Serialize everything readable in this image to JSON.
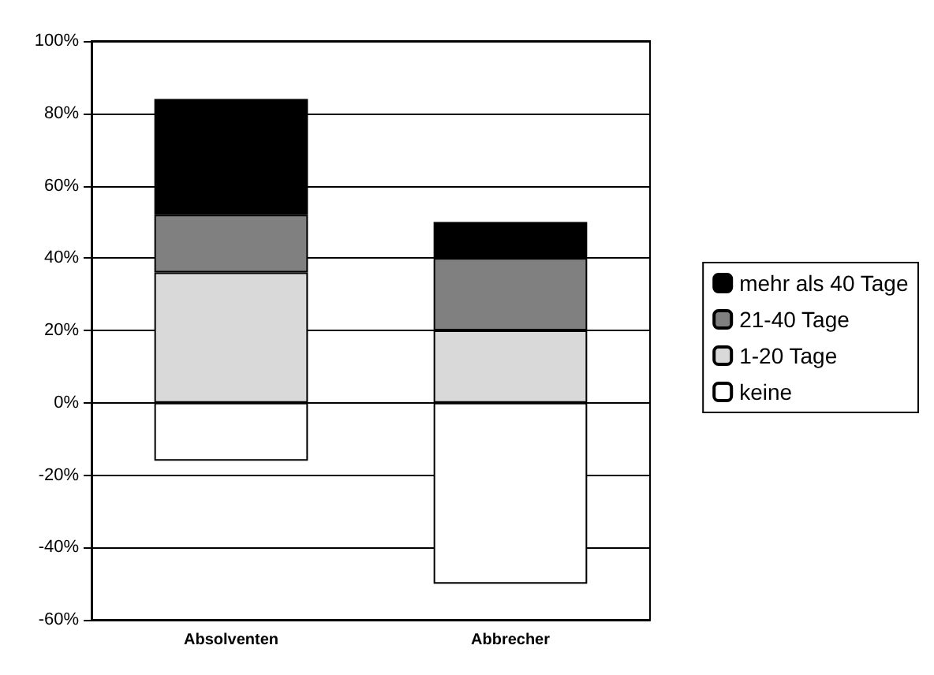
{
  "chart_data": {
    "type": "bar",
    "stacked": true,
    "categories": [
      "Absolventen",
      "Abbrecher"
    ],
    "series": [
      {
        "name": "keine",
        "color": "#ffffff",
        "values": [
          -16,
          -50
        ]
      },
      {
        "name": "1-20 Tage",
        "color": "#d9d9d9",
        "values": [
          36,
          20
        ]
      },
      {
        "name": "21-40 Tage",
        "color": "#808080",
        "values": [
          16,
          20
        ]
      },
      {
        "name": "mehr als 40 Tage",
        "color": "#000000",
        "values": [
          32,
          10
        ]
      }
    ],
    "ylim": [
      -60,
      100
    ],
    "yticks": [
      {
        "value": -60,
        "label": "-60%"
      },
      {
        "value": -40,
        "label": "-40%"
      },
      {
        "value": -20,
        "label": "-20%"
      },
      {
        "value": 0,
        "label": "0%"
      },
      {
        "value": 20,
        "label": "20%"
      },
      {
        "value": 40,
        "label": "40%"
      },
      {
        "value": 60,
        "label": "60%"
      },
      {
        "value": 80,
        "label": "80%"
      },
      {
        "value": 100,
        "label": "100%"
      }
    ],
    "grid": "y",
    "legend": "right"
  }
}
